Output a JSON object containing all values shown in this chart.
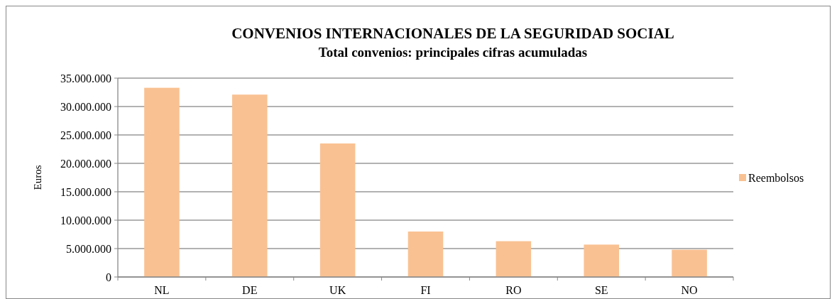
{
  "chart_data": {
    "type": "bar",
    "title": "CONVENIOS INTERNACIONALES DE LA SEGURIDAD SOCIAL",
    "subtitle": "Total convenios: principales cifras acumuladas",
    "ylabel": "Euros",
    "categories": [
      "NL",
      "DE",
      "UK",
      "FI",
      "RO",
      "SE",
      "NO"
    ],
    "series": [
      {
        "name": "Reembolsos",
        "color": "#f9c192",
        "values": [
          33300000,
          32100000,
          23500000,
          8000000,
          6300000,
          5700000,
          4800000
        ]
      }
    ],
    "ylim": [
      0,
      35000000
    ],
    "yticks": [
      {
        "value": 0,
        "label": "0"
      },
      {
        "value": 5000000,
        "label": "5.000.000"
      },
      {
        "value": 10000000,
        "label": "10.000.000"
      },
      {
        "value": 15000000,
        "label": "15.000.000"
      },
      {
        "value": 20000000,
        "label": "20.000.000"
      },
      {
        "value": 25000000,
        "label": "25.000.000"
      },
      {
        "value": 30000000,
        "label": "30.000.000"
      },
      {
        "value": 35000000,
        "label": "35.000.000"
      }
    ],
    "grid": "y",
    "legend": "right"
  }
}
